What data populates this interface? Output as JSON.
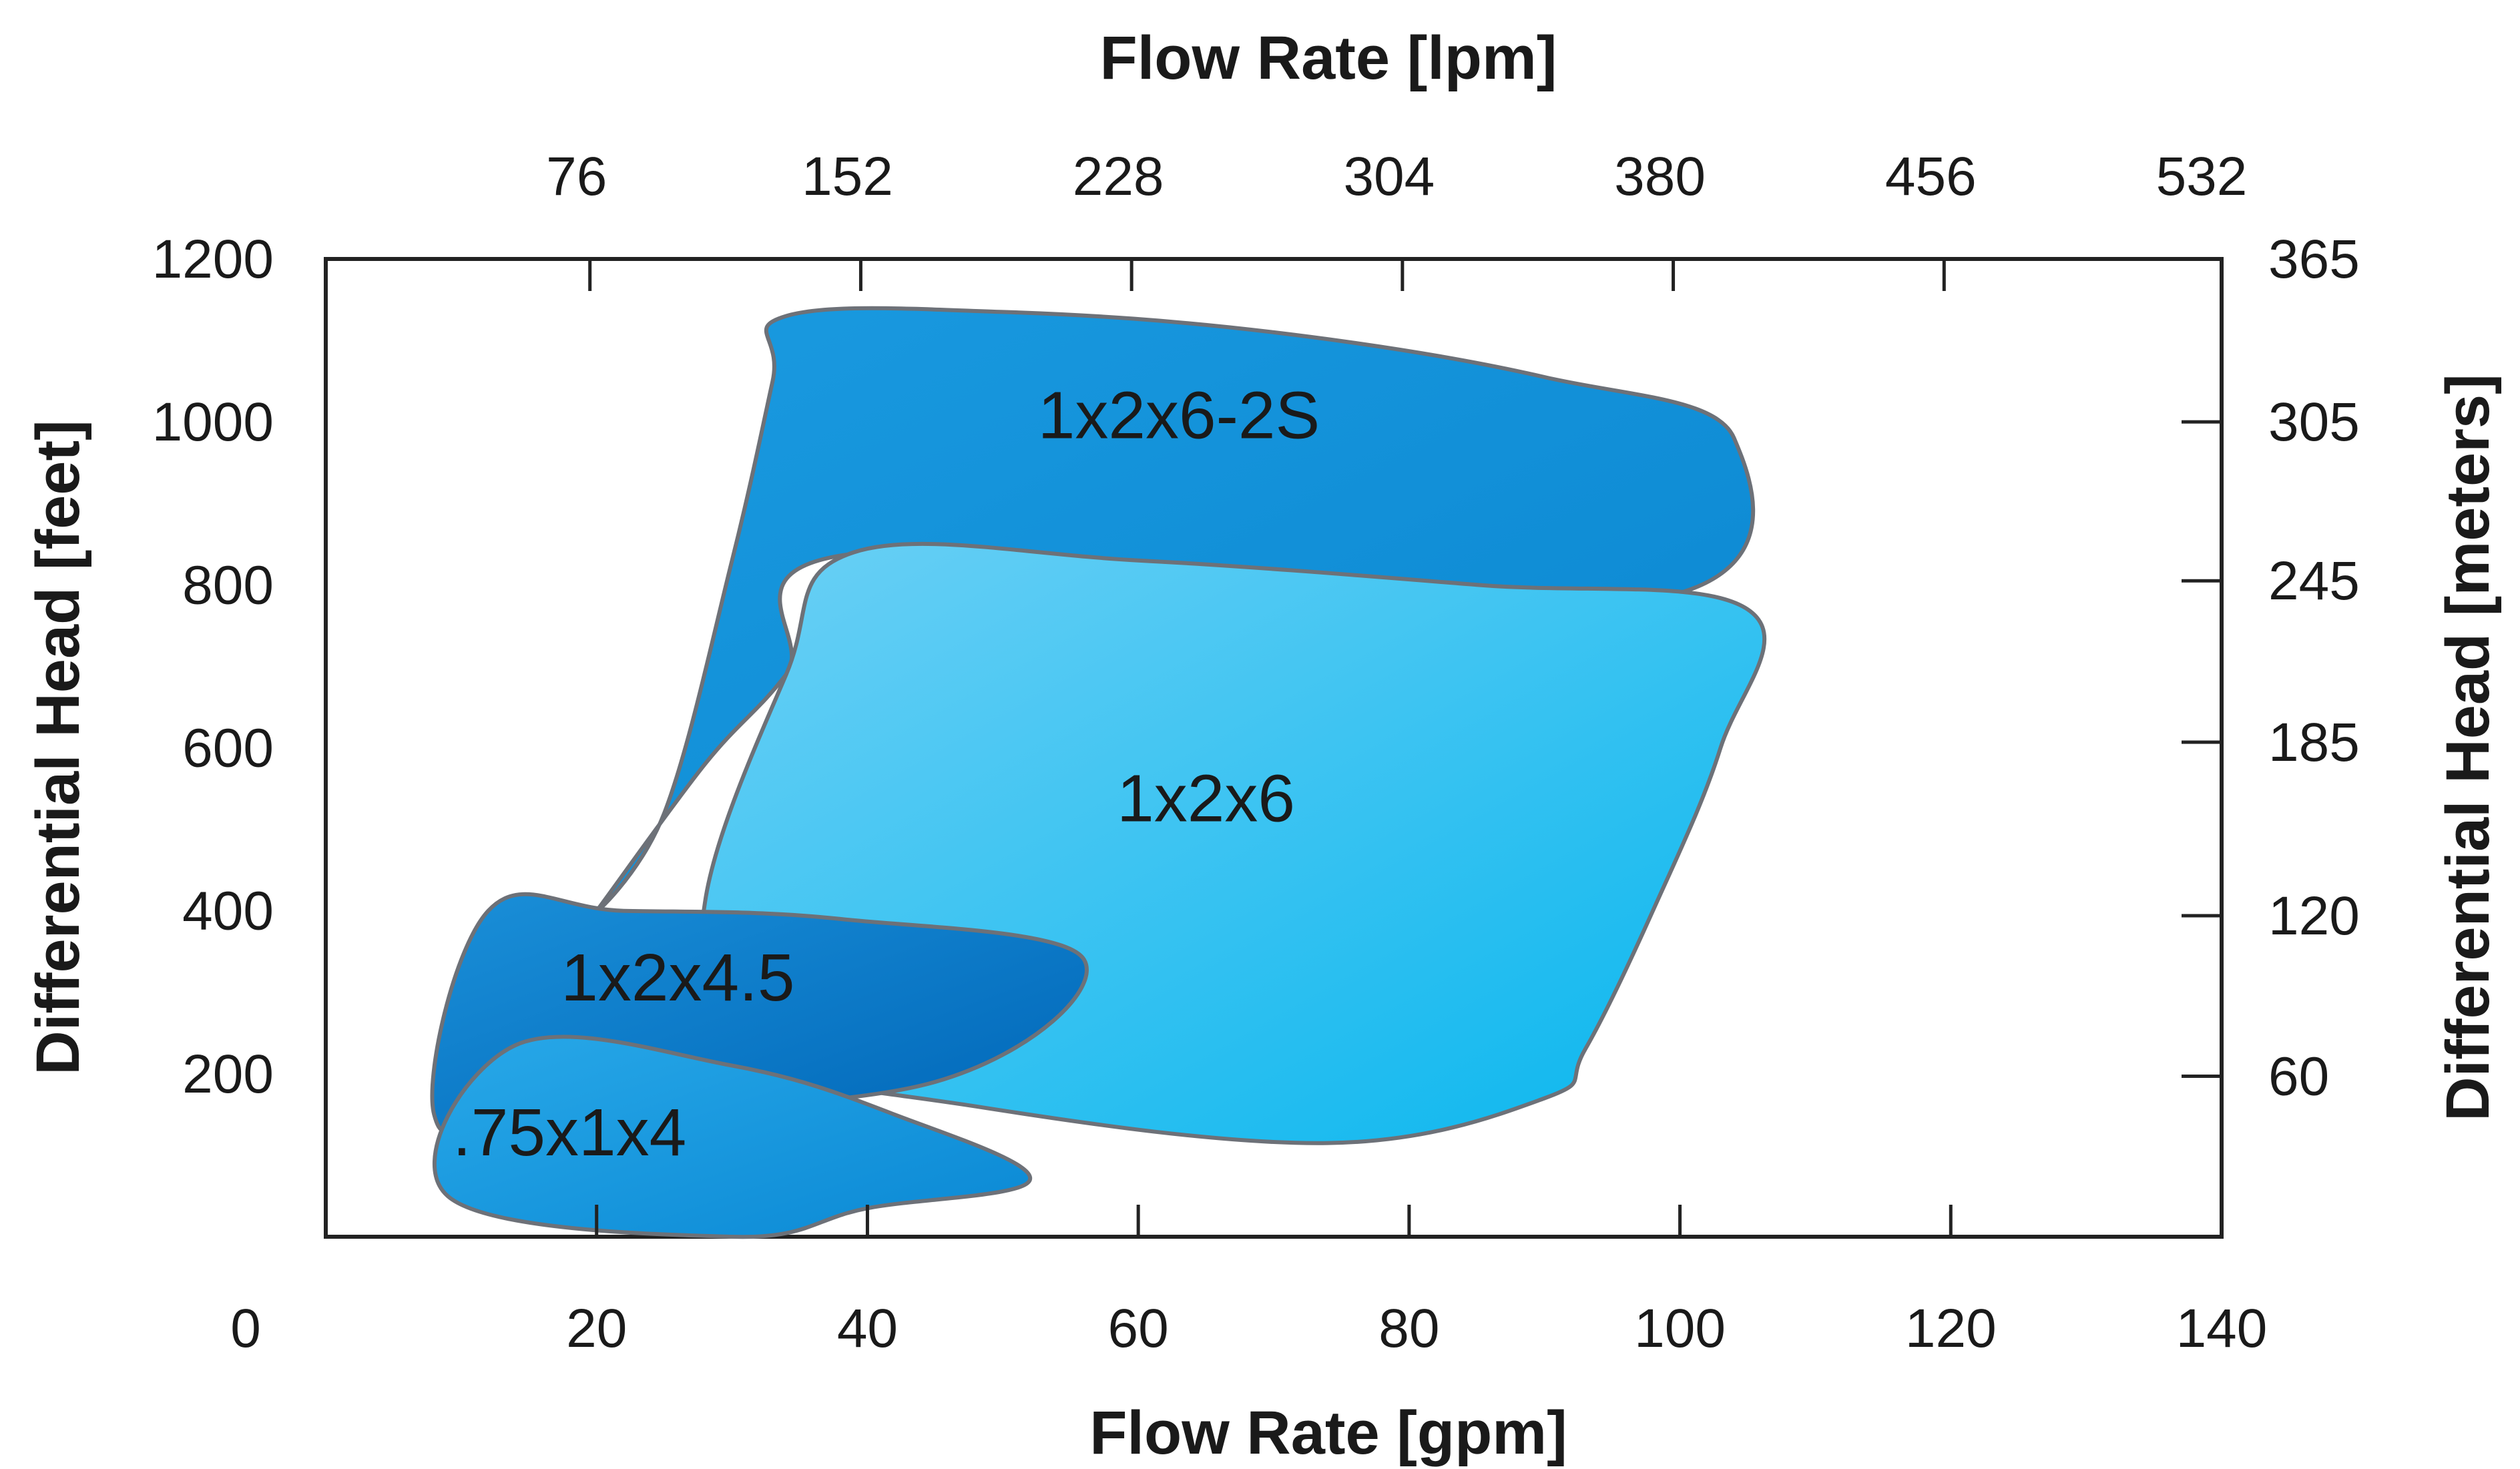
{
  "chart_data": {
    "type": "area",
    "title": "",
    "xlabel": "Flow Rate [gpm]",
    "x2label": "Flow Rate [lpm]",
    "ylabel": "Differential Head [feet]",
    "y2label": "Differential Head [meters]",
    "xlim": [
      0,
      140
    ],
    "ylim": [
      0,
      1200
    ],
    "x_ticks": [
      0,
      20,
      40,
      60,
      80,
      100,
      120,
      140
    ],
    "y_ticks": [
      200,
      400,
      600,
      800,
      1000,
      1200
    ],
    "x2_ticks": [
      {
        "label": "76",
        "gpm": 20
      },
      {
        "label": "152",
        "gpm": 40
      },
      {
        "label": "228",
        "gpm": 60
      },
      {
        "label": "304",
        "gpm": 80
      },
      {
        "label": "380",
        "gpm": 100
      },
      {
        "label": "456",
        "gpm": 120
      },
      {
        "label": "532",
        "gpm": 140
      }
    ],
    "y2_ticks": [
      {
        "label": "365",
        "feet": 1200
      },
      {
        "label": "305",
        "feet": 1000
      },
      {
        "label": "245",
        "feet": 805
      },
      {
        "label": "185",
        "feet": 607
      },
      {
        "label": "120",
        "feet": 394
      },
      {
        "label": "60",
        "feet": 197
      }
    ],
    "grid": false,
    "series": [
      {
        "name": "1x2x6-2S",
        "label_at": {
          "x": 63,
          "y": 980
        },
        "colors": [
          "#1a9ae0",
          "#0a86d0"
        ],
        "points": [
          [
            34,
            1130
          ],
          [
            50,
            1135
          ],
          [
            70,
            1110
          ],
          [
            90,
            1055
          ],
          [
            104,
            980
          ],
          [
            97,
            780
          ],
          [
            40,
            840
          ],
          [
            34,
            690
          ],
          [
            28,
            580
          ],
          [
            20,
            400
          ],
          [
            25,
            520
          ],
          [
            30,
            830
          ],
          [
            33,
            1050
          ]
        ]
      },
      {
        "name": "1x2x6",
        "label_at": {
          "x": 65,
          "y": 510
        },
        "colors": [
          "#6cd0f5",
          "#08b6ee"
        ],
        "points": [
          [
            39,
            840
          ],
          [
            60,
            830
          ],
          [
            85,
            800
          ],
          [
            105,
            770
          ],
          [
            103,
            600
          ],
          [
            98,
            400
          ],
          [
            93,
            230
          ],
          [
            90,
            170
          ],
          [
            74,
            115
          ],
          [
            48,
            160
          ],
          [
            30,
            230
          ],
          [
            28,
            410
          ],
          [
            34,
            690
          ]
        ]
      },
      {
        "name": "1x2x4.5",
        "label_at": {
          "x": 26,
          "y": 290
        },
        "colors": [
          "#1a8fd8",
          "#0066b8"
        ],
        "points": [
          [
            12,
            400
          ],
          [
            22,
            400
          ],
          [
            38,
            390
          ],
          [
            56,
            340
          ],
          [
            45,
            190
          ],
          [
            16,
            150
          ],
          [
            8,
            150
          ]
        ]
      },
      {
        "name": ".75x1x4",
        "label_at": {
          "x": 18,
          "y": 100
        },
        "colors": [
          "#28a8e8",
          "#0a88d4"
        ],
        "points": [
          [
            14,
            235
          ],
          [
            30,
            210
          ],
          [
            42,
            150
          ],
          [
            52,
            70
          ],
          [
            40,
            35
          ],
          [
            30,
            0
          ],
          [
            9,
            50
          ]
        ]
      }
    ]
  }
}
